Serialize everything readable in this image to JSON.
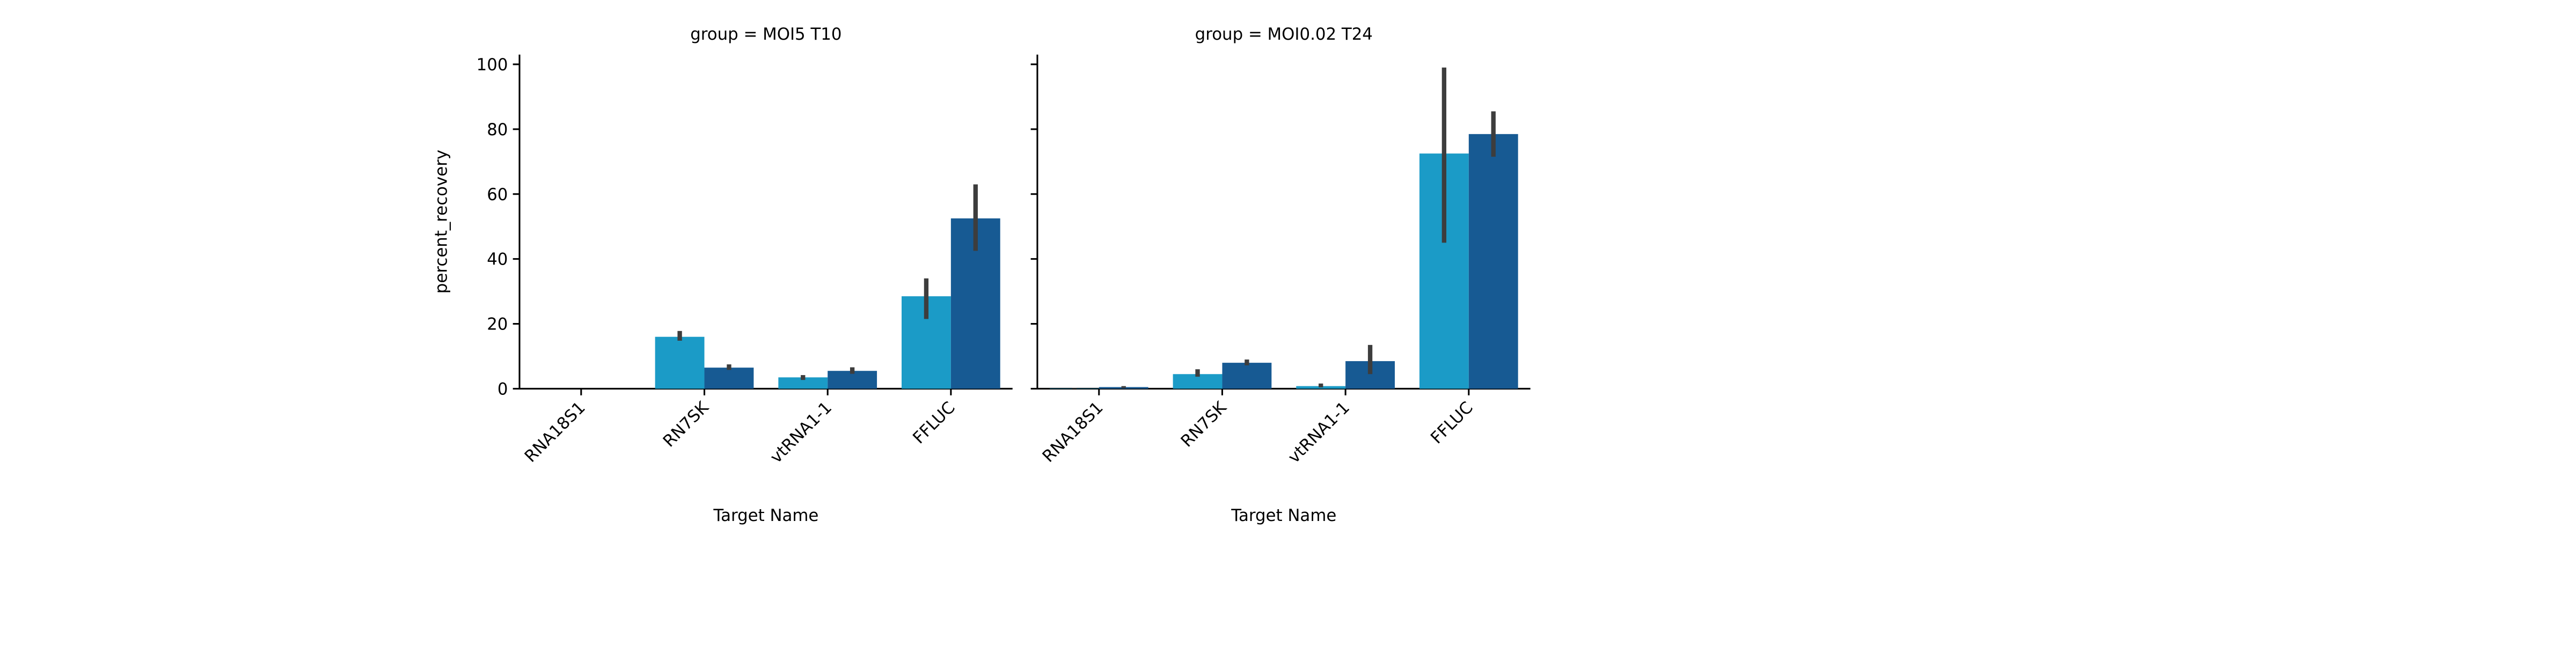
{
  "chart_data": {
    "type": "bar",
    "ylabel": "percent_recovery",
    "xlabel": "Target Name",
    "ylim": [
      0,
      103
    ],
    "yticks": [
      0,
      20,
      40,
      60,
      80,
      100
    ],
    "categories": [
      "RNA18S1",
      "RN7SK",
      "vtRNA1-1",
      "FFLUC"
    ],
    "grid": false,
    "legend": "none",
    "colors": [
      "#1b9bc7",
      "#175a93"
    ],
    "errorbar_color": "#3d3d3d",
    "panels": [
      {
        "title": "group = MOI5 T10",
        "series": [
          {
            "values": [
              0.0,
              16.0,
              3.5,
              28.5
            ],
            "err_low": [
              0.0,
              14.8,
              2.7,
              21.5
            ],
            "err_high": [
              0.0,
              17.8,
              4.2,
              34.0
            ]
          },
          {
            "values": [
              0.0,
              6.5,
              5.5,
              52.5
            ],
            "err_low": [
              0.0,
              5.8,
              4.6,
              42.5
            ],
            "err_high": [
              0.0,
              7.5,
              6.6,
              63.0
            ]
          }
        ]
      },
      {
        "title": "group = MOI0.02 T24",
        "series": [
          {
            "values": [
              0.1,
              4.5,
              0.8,
              72.5
            ],
            "err_low": [
              0.0,
              3.7,
              0.4,
              45.0
            ],
            "err_high": [
              0.2,
              6.0,
              1.6,
              99.0
            ]
          },
          {
            "values": [
              0.5,
              8.0,
              8.5,
              78.5
            ],
            "err_low": [
              0.2,
              7.2,
              4.5,
              71.5
            ],
            "err_high": [
              0.8,
              9.0,
              13.5,
              85.5
            ]
          }
        ]
      }
    ]
  }
}
